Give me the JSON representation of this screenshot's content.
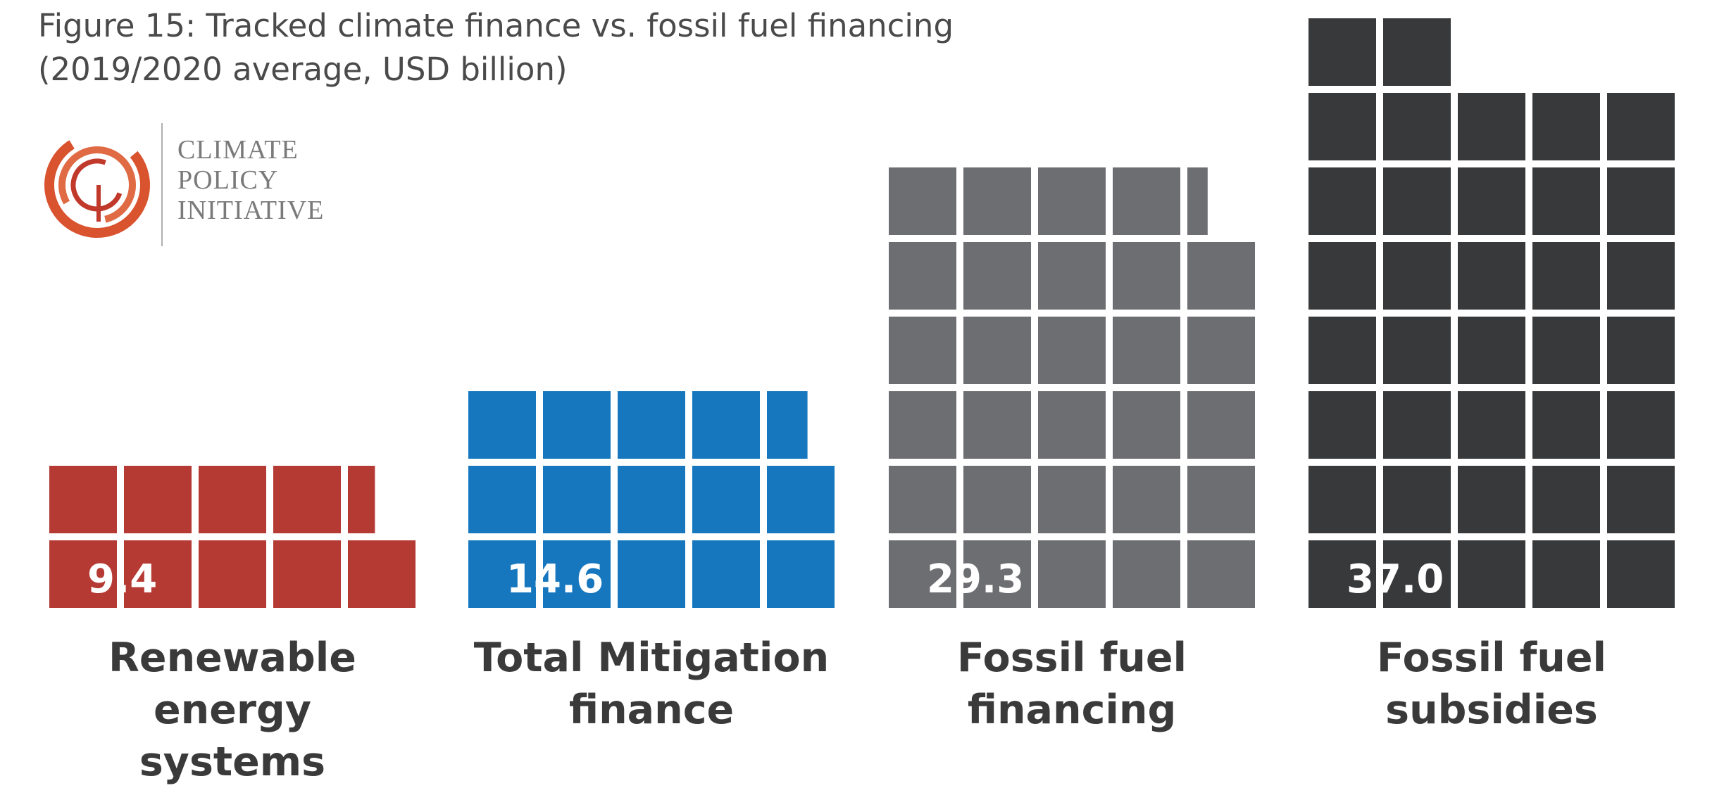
{
  "header": {
    "title_line1": "Figure 15: Tracked climate finance vs. fossil fuel financing",
    "title_line2": "(2019/2020 average, USD billion)"
  },
  "logo": {
    "line1": "CLIMATE",
    "line2": "POLICY",
    "line3": "INITIATIVE",
    "colors": {
      "outer": "#d9532e",
      "inner": "#c0392b",
      "text": "#7a7a7a"
    }
  },
  "chart_data": {
    "type": "bar",
    "title": "Figure 15: Tracked climate finance vs. fossil fuel financing",
    "subtitle": "(2019/2020 average, USD billion)",
    "categories": [
      "Renewable energy systems",
      "Total Mitigation finance",
      "Fossil fuel financing",
      "Fossil fuel subsidies"
    ],
    "values": [
      9.4,
      14.6,
      29.3,
      37.0
    ],
    "value_labels": [
      "9.4",
      "14.6",
      "29.3",
      "37.0"
    ],
    "label_lines": [
      [
        "Renewable energy",
        "systems"
      ],
      [
        "Total Mitigation",
        "finance"
      ],
      [
        "Fossil fuel",
        "financing"
      ],
      [
        "Fossil fuel",
        "subsidies"
      ]
    ],
    "colors": [
      "#b63a34",
      "#1677be",
      "#6d6e71",
      "#38393b"
    ],
    "encoding": "unit grid, 5 squares per row, one square per unit",
    "grid": false
  }
}
